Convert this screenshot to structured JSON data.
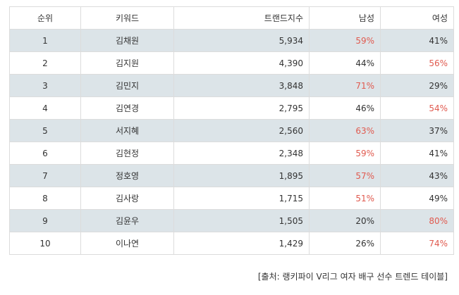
{
  "table": {
    "headers": [
      "순위",
      "키워드",
      "트랜드지수",
      "남성",
      "여성"
    ],
    "rows": [
      {
        "rank": "1",
        "keyword": "김채원",
        "index": "5,934",
        "male": "59%",
        "female": "41%",
        "highlight": "male"
      },
      {
        "rank": "2",
        "keyword": "김지원",
        "index": "4,390",
        "male": "44%",
        "female": "56%",
        "highlight": "female"
      },
      {
        "rank": "3",
        "keyword": "김민지",
        "index": "3,848",
        "male": "71%",
        "female": "29%",
        "highlight": "male"
      },
      {
        "rank": "4",
        "keyword": "김연경",
        "index": "2,795",
        "male": "46%",
        "female": "54%",
        "highlight": "female"
      },
      {
        "rank": "5",
        "keyword": "서지혜",
        "index": "2,560",
        "male": "63%",
        "female": "37%",
        "highlight": "male"
      },
      {
        "rank": "6",
        "keyword": "김현정",
        "index": "2,348",
        "male": "59%",
        "female": "41%",
        "highlight": "male"
      },
      {
        "rank": "7",
        "keyword": "정호영",
        "index": "1,895",
        "male": "57%",
        "female": "43%",
        "highlight": "male"
      },
      {
        "rank": "8",
        "keyword": "김사랑",
        "index": "1,715",
        "male": "51%",
        "female": "49%",
        "highlight": "male"
      },
      {
        "rank": "9",
        "keyword": "김윤우",
        "index": "1,505",
        "male": "20%",
        "female": "80%",
        "highlight": "female"
      },
      {
        "rank": "10",
        "keyword": "이나연",
        "index": "1,429",
        "male": "26%",
        "female": "74%",
        "highlight": "female"
      }
    ]
  },
  "source": "[출처: 랭키파이 V리그 여자 배구 선수 트렌드 테이블]",
  "colors": {
    "highlight": "#e05a4f",
    "stripe": "#dce4e8",
    "border": "#dcdcdc"
  }
}
